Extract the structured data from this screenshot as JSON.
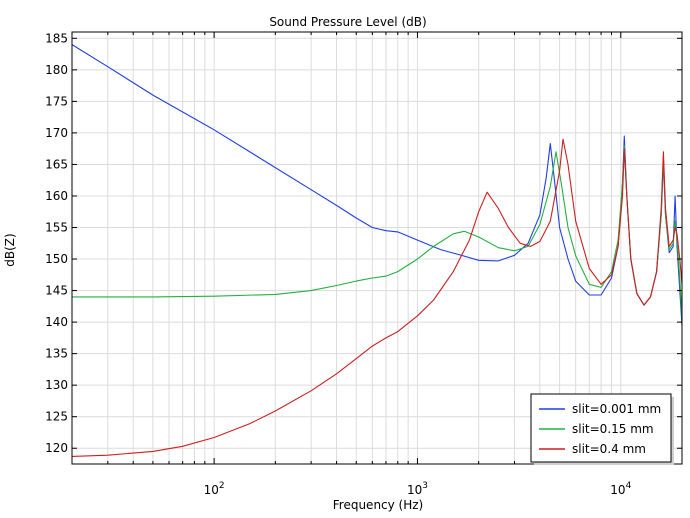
{
  "chart_data": {
    "type": "line",
    "title": "Sound Pressure Level (dB)",
    "xlabel": "Frequency (Hz)",
    "ylabel": "dB(Z)",
    "xscale": "log",
    "xlim": [
      20,
      20000
    ],
    "ylim": [
      117.5,
      186
    ],
    "yticks": [
      120,
      125,
      130,
      135,
      140,
      145,
      150,
      155,
      160,
      165,
      170,
      175,
      180,
      185
    ],
    "xticks": [
      {
        "value": 100,
        "base": "10",
        "exp": "2"
      },
      {
        "value": 1000,
        "base": "10",
        "exp": "3"
      },
      {
        "value": 10000,
        "base": "10",
        "exp": "4"
      }
    ],
    "grid": true,
    "legend_position": "bottom-right",
    "series": [
      {
        "name": "slit=0.001 mm",
        "color": "#1f3fe6",
        "points": [
          [
            20,
            184
          ],
          [
            30,
            180.5
          ],
          [
            50,
            176
          ],
          [
            100,
            170.5
          ],
          [
            200,
            164.5
          ],
          [
            300,
            161
          ],
          [
            400,
            158.5
          ],
          [
            500,
            156.5
          ],
          [
            600,
            155
          ],
          [
            700,
            154.5
          ],
          [
            800,
            154.3
          ],
          [
            1000,
            153
          ],
          [
            1300,
            151.5
          ],
          [
            1600,
            150.7
          ],
          [
            2000,
            149.8
          ],
          [
            2500,
            149.7
          ],
          [
            3000,
            150.6
          ],
          [
            3500,
            152.5
          ],
          [
            4000,
            157
          ],
          [
            4300,
            163
          ],
          [
            4500,
            168.3
          ],
          [
            4700,
            163
          ],
          [
            5000,
            155
          ],
          [
            5500,
            150
          ],
          [
            6000,
            146.5
          ],
          [
            7000,
            144.3
          ],
          [
            8000,
            144.3
          ],
          [
            9000,
            147
          ],
          [
            9700,
            152
          ],
          [
            10200,
            162
          ],
          [
            10400,
            169.5
          ],
          [
            10700,
            160
          ],
          [
            11200,
            150
          ],
          [
            12000,
            144.5
          ],
          [
            13000,
            142.7
          ],
          [
            14000,
            144
          ],
          [
            15000,
            148
          ],
          [
            15800,
            157
          ],
          [
            16200,
            165.5
          ],
          [
            16600,
            157
          ],
          [
            17300,
            151
          ],
          [
            18100,
            152
          ],
          [
            18500,
            160
          ],
          [
            18900,
            152
          ],
          [
            19500,
            145
          ],
          [
            20000,
            139.5
          ]
        ]
      },
      {
        "name": "slit=0.15 mm",
        "color": "#22b040",
        "points": [
          [
            20,
            144
          ],
          [
            50,
            144
          ],
          [
            100,
            144.1
          ],
          [
            200,
            144.4
          ],
          [
            300,
            145
          ],
          [
            400,
            145.8
          ],
          [
            500,
            146.5
          ],
          [
            600,
            147
          ],
          [
            700,
            147.3
          ],
          [
            800,
            148
          ],
          [
            1000,
            150
          ],
          [
            1200,
            152
          ],
          [
            1500,
            154
          ],
          [
            1700,
            154.4
          ],
          [
            2000,
            153.5
          ],
          [
            2500,
            151.8
          ],
          [
            3000,
            151.3
          ],
          [
            3500,
            152
          ],
          [
            4000,
            155.5
          ],
          [
            4500,
            161.5
          ],
          [
            4800,
            167
          ],
          [
            5100,
            162
          ],
          [
            5500,
            155
          ],
          [
            6000,
            150.5
          ],
          [
            7000,
            146
          ],
          [
            8000,
            145.5
          ],
          [
            9000,
            148
          ],
          [
            9700,
            153
          ],
          [
            10200,
            162
          ],
          [
            10400,
            168
          ],
          [
            10700,
            160
          ],
          [
            11200,
            150
          ],
          [
            12000,
            144.5
          ],
          [
            13000,
            142.7
          ],
          [
            14000,
            144
          ],
          [
            15000,
            148
          ],
          [
            15800,
            157
          ],
          [
            16200,
            166
          ],
          [
            16600,
            157
          ],
          [
            17300,
            151.5
          ],
          [
            18100,
            152.5
          ],
          [
            18500,
            156
          ],
          [
            18900,
            153
          ],
          [
            19500,
            147
          ],
          [
            20000,
            140.5
          ]
        ]
      },
      {
        "name": "slit=0.4 mm",
        "color": "#cc1f1f",
        "points": [
          [
            20,
            118.7
          ],
          [
            30,
            118.9
          ],
          [
            50,
            119.5
          ],
          [
            70,
            120.3
          ],
          [
            100,
            121.7
          ],
          [
            150,
            123.9
          ],
          [
            200,
            125.9
          ],
          [
            300,
            129.1
          ],
          [
            400,
            131.8
          ],
          [
            500,
            134.2
          ],
          [
            600,
            136.2
          ],
          [
            700,
            137.5
          ],
          [
            800,
            138.5
          ],
          [
            1000,
            141
          ],
          [
            1200,
            143.5
          ],
          [
            1500,
            148
          ],
          [
            1800,
            153
          ],
          [
            2000,
            157.5
          ],
          [
            2200,
            160.6
          ],
          [
            2500,
            158
          ],
          [
            2800,
            155
          ],
          [
            3200,
            152.5
          ],
          [
            3600,
            152
          ],
          [
            4000,
            152.8
          ],
          [
            4500,
            156
          ],
          [
            5000,
            164
          ],
          [
            5200,
            169
          ],
          [
            5500,
            165
          ],
          [
            6000,
            156
          ],
          [
            7000,
            148.5
          ],
          [
            8000,
            146
          ],
          [
            9000,
            147.5
          ],
          [
            9700,
            152
          ],
          [
            10200,
            160
          ],
          [
            10400,
            167.5
          ],
          [
            10700,
            160
          ],
          [
            11200,
            150
          ],
          [
            12000,
            144.5
          ],
          [
            13000,
            142.7
          ],
          [
            14000,
            144
          ],
          [
            15000,
            148
          ],
          [
            15800,
            158
          ],
          [
            16200,
            167
          ],
          [
            16600,
            158
          ],
          [
            17300,
            152
          ],
          [
            18100,
            153
          ],
          [
            18500,
            155
          ],
          [
            18900,
            154
          ],
          [
            19500,
            150
          ],
          [
            20000,
            146
          ]
        ]
      }
    ]
  }
}
